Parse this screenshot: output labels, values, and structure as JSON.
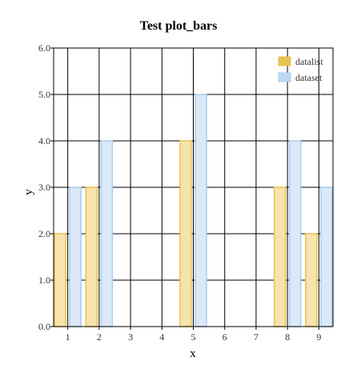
{
  "chart_data": {
    "type": "bar",
    "title": "Test plot_bars",
    "xlabel": "x",
    "ylabel": "y",
    "xticks": [
      1,
      2,
      3,
      4,
      5,
      6,
      7,
      8,
      9
    ],
    "yticks": [
      "0.0",
      "1.0",
      "2.0",
      "3.0",
      "4.0",
      "5.0",
      "6.0"
    ],
    "xlim": [
      0.55,
      9.45
    ],
    "ylim": [
      0,
      6
    ],
    "grid": true,
    "legend_position": "top-right",
    "series": [
      {
        "name": "datalist",
        "fill": "#f7e3ad",
        "stroke": "#e8c24f",
        "legend_fill": "#e8c24f",
        "points": [
          {
            "x": 1,
            "y": 2
          },
          {
            "x": 2,
            "y": 3
          },
          {
            "x": 5,
            "y": 4
          },
          {
            "x": 8,
            "y": 3
          },
          {
            "x": 9,
            "y": 2
          }
        ]
      },
      {
        "name": "dataset",
        "fill": "#dbe8f8",
        "stroke": "#a9cdee",
        "legend_fill": "#bcdaf5",
        "points": [
          {
            "x": 1,
            "y": 3
          },
          {
            "x": 2,
            "y": 4
          },
          {
            "x": 5,
            "y": 5
          },
          {
            "x": 8,
            "y": 4
          },
          {
            "x": 9,
            "y": 3
          }
        ]
      }
    ]
  }
}
